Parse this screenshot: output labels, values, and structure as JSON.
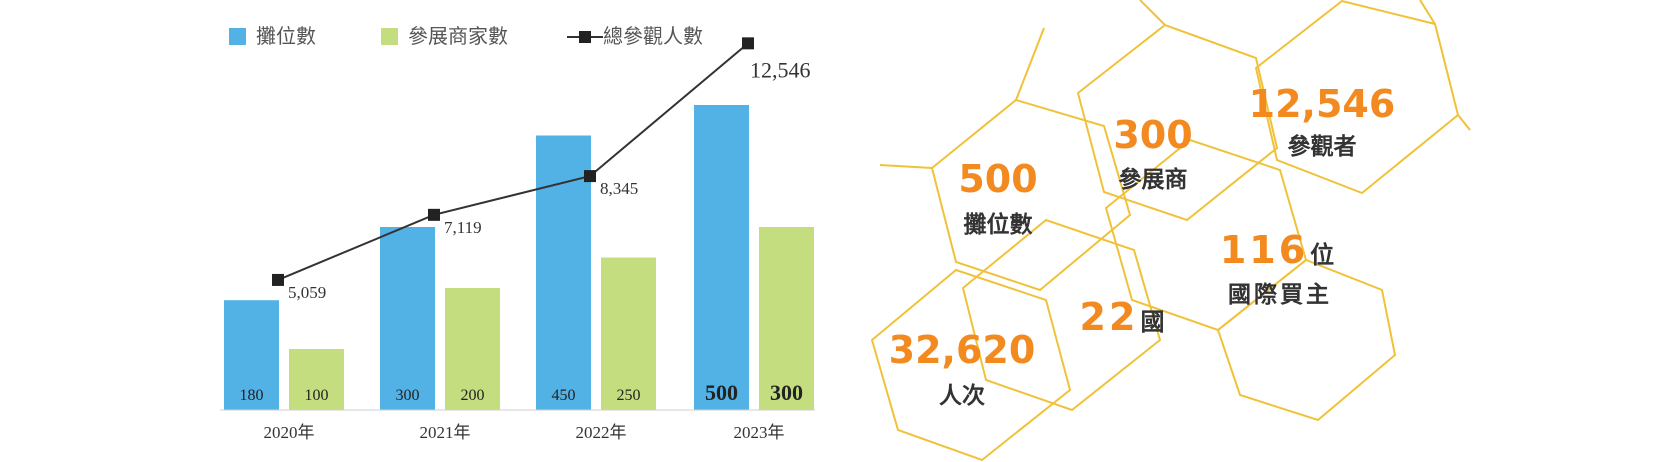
{
  "chart_data": {
    "type": "bar",
    "categories": [
      "2020年",
      "2021年",
      "2022年",
      "2023年"
    ],
    "series": [
      {
        "name": "攤位數",
        "values": [
          180,
          300,
          450,
          500
        ],
        "color": "#52b1e5",
        "value_labels": [
          "180",
          "300",
          "450",
          "500"
        ]
      },
      {
        "name": "參展商家數",
        "values": [
          100,
          200,
          250,
          300
        ],
        "color": "#c3dd7f",
        "value_labels": [
          "100",
          "200",
          "250",
          "300"
        ]
      },
      {
        "name": "總參觀人數",
        "type": "line",
        "values": [
          5059,
          7119,
          8345,
          12546
        ],
        "color": "#333333",
        "value_labels": [
          "5,059",
          "7,119",
          "8,345",
          "12,546"
        ]
      }
    ],
    "legend_position": "top-left",
    "grid": false
  },
  "stats": [
    {
      "id": "booths",
      "value": "500",
      "suffix": "",
      "label": "攤位數"
    },
    {
      "id": "exhibitors",
      "value": "300",
      "suffix": "",
      "label": "參展商"
    },
    {
      "id": "visitors",
      "value": "12,546",
      "suffix": "",
      "label": "參觀者"
    },
    {
      "id": "buyers",
      "value": "116",
      "suffix": "位",
      "label": "國際買主"
    },
    {
      "id": "countries",
      "value": "22",
      "suffix": "國",
      "label": ""
    },
    {
      "id": "attendance",
      "value": "32,620",
      "suffix": "",
      "label": "人次"
    }
  ],
  "colors": {
    "accent": "#f28a20",
    "hex_line": "#f0c239",
    "text": "#333333",
    "bar_blue": "#52b1e5",
    "bar_green": "#c3dd7f"
  }
}
